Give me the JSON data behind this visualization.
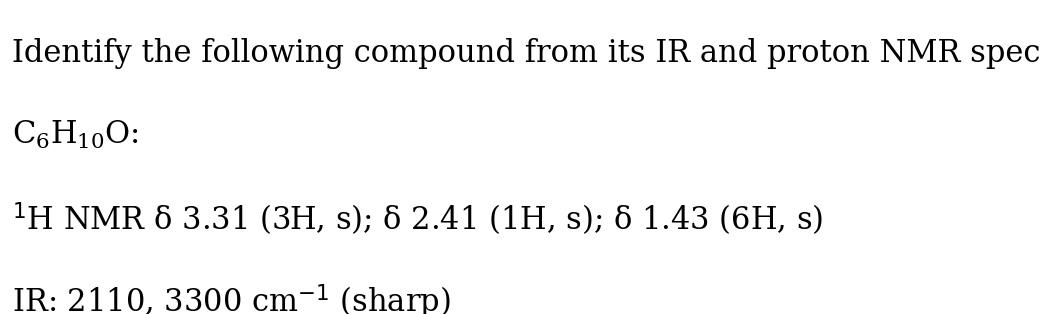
{
  "background_color": "#ffffff",
  "line1": "Identify the following compound from its IR and proton NMR spectra.",
  "line3_nmr": "δ 3.31 (3H, s); δ 2.41 (1H, s); δ 1.43 (6H, s)",
  "line4_ir_prefix": "IR: 2110, 3300 cm",
  "line4_ir_suffix": " (sharp)",
  "fontsize_main": 22,
  "fontsize_sub": 15,
  "fontsize_super": 15,
  "text_color": "#000000",
  "fig_width": 10.4,
  "fig_height": 3.14,
  "dpi": 100
}
